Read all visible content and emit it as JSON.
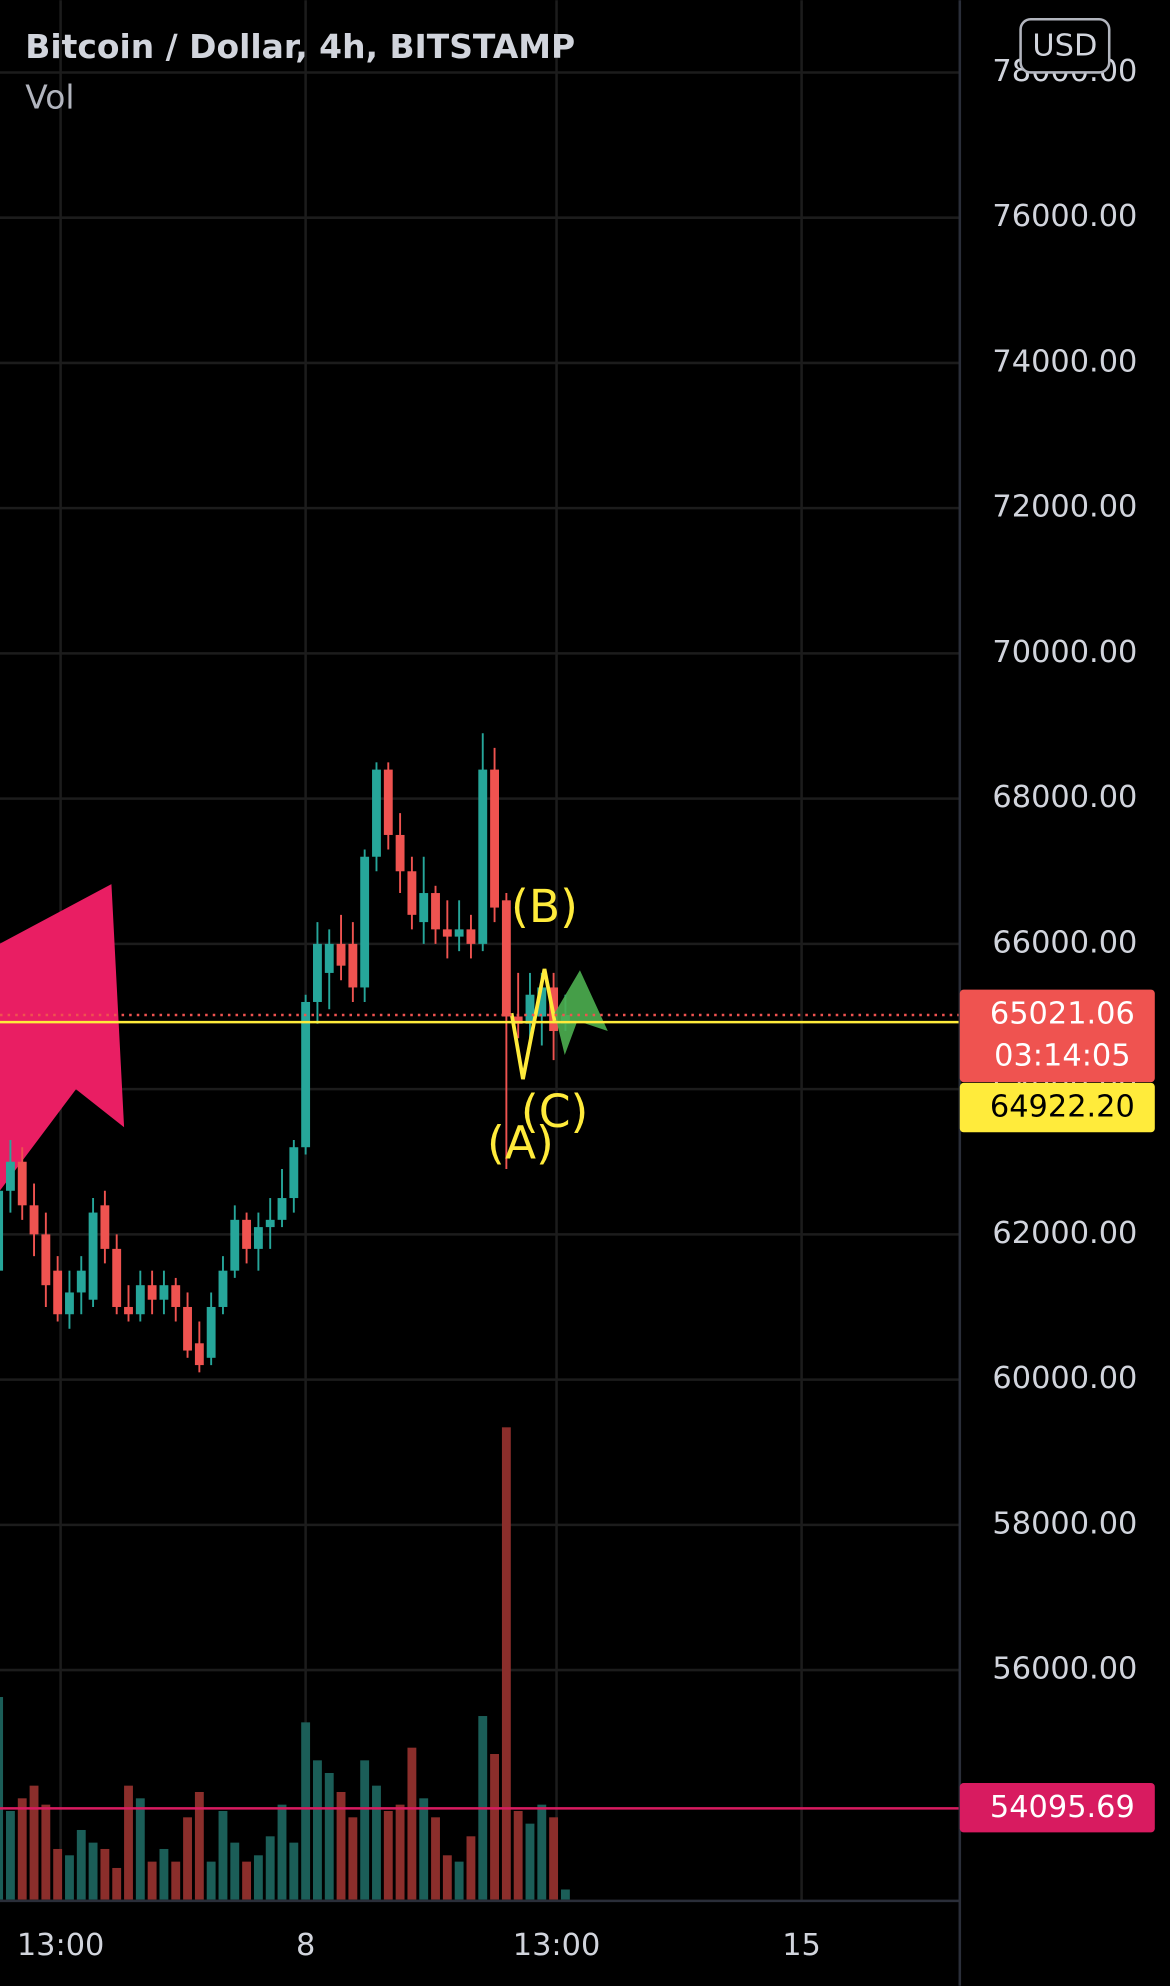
{
  "header": {
    "title": "Bitcoin / Dollar, 4h, BITSTAMP",
    "volume_label": "Vol",
    "currency": "USD"
  },
  "chart_data": {
    "type": "candlestick",
    "x": [
      88,
      92,
      96,
      100,
      104,
      108,
      112,
      116,
      120,
      124,
      128,
      132,
      136,
      140,
      144,
      148,
      152,
      156,
      160,
      164,
      168,
      172,
      176,
      180,
      184,
      188,
      192,
      196,
      200,
      204,
      208,
      212,
      216,
      220,
      224,
      228,
      232,
      236,
      240,
      244,
      248,
      252,
      256,
      260,
      264,
      268,
      272,
      276,
      280
    ],
    "open": [
      61500,
      62600,
      63000,
      62400,
      62000,
      61500,
      60900,
      61200,
      61100,
      62400,
      61800,
      61000,
      60900,
      61300,
      61100,
      61300,
      61000,
      60500,
      60300,
      61000,
      61500,
      62200,
      61800,
      62100,
      62200,
      62500,
      63200,
      65200,
      65600,
      66000,
      66000,
      65400,
      67200,
      68400,
      67500,
      67000,
      66300,
      66700,
      66200,
      66100,
      66200,
      66000,
      68400,
      66600,
      65000,
      64900,
      65000,
      65400,
      64900
    ],
    "high": [
      63000,
      63300,
      63200,
      62700,
      62300,
      61700,
      61500,
      61700,
      62500,
      62600,
      62000,
      61300,
      61500,
      61500,
      61500,
      61400,
      61200,
      60800,
      61200,
      61700,
      62400,
      62300,
      62300,
      62500,
      62900,
      63300,
      65300,
      66300,
      66200,
      66400,
      66300,
      67300,
      68500,
      68500,
      67800,
      67200,
      67200,
      66800,
      66600,
      66600,
      66400,
      68900,
      68700,
      66700,
      65600,
      65600,
      65600,
      65600,
      65300
    ],
    "low": [
      60000,
      62300,
      62200,
      61700,
      61000,
      60800,
      60700,
      60900,
      61000,
      61600,
      60900,
      60800,
      60800,
      60900,
      60900,
      60800,
      60300,
      60100,
      60200,
      60900,
      61400,
      61600,
      61500,
      61800,
      62100,
      62300,
      63100,
      64900,
      65100,
      65500,
      65200,
      65200,
      67000,
      67300,
      66700,
      66200,
      66000,
      66000,
      65800,
      65900,
      65800,
      65900,
      66300,
      62900,
      64700,
      64600,
      64600,
      64400,
      64800
    ],
    "close": [
      62600,
      63000,
      62400,
      62000,
      61300,
      60900,
      61200,
      61500,
      62300,
      61800,
      61000,
      60900,
      61300,
      61100,
      61300,
      61000,
      60400,
      60200,
      61000,
      61500,
      62200,
      61800,
      62100,
      62200,
      62500,
      63200,
      65200,
      66000,
      66000,
      65700,
      65400,
      67200,
      68400,
      67500,
      67000,
      66400,
      66700,
      66200,
      66100,
      66200,
      66000,
      68400,
      66500,
      65000,
      64900,
      65300,
      65400,
      64800,
      65021.06
    ],
    "volume": [
      160,
      70,
      80,
      90,
      75,
      40,
      35,
      55,
      45,
      40,
      25,
      90,
      80,
      30,
      40,
      30,
      65,
      85,
      30,
      70,
      45,
      30,
      35,
      50,
      75,
      45,
      140,
      110,
      100,
      85,
      65,
      110,
      90,
      70,
      75,
      120,
      80,
      65,
      35,
      30,
      50,
      145,
      115,
      373,
      70,
      60,
      75,
      65,
      8
    ],
    "up_color": "#26a69a",
    "down_color": "#ef5350",
    "up_volume_color": "#1b5e58",
    "down_volume_color": "#8b2e2b",
    "xlim": [
      88.47,
      413.6
    ],
    "xticks": [
      {
        "value": 109,
        "label": "13:00"
      },
      {
        "value": 192,
        "label": "8"
      },
      {
        "value": 277,
        "label": "13:00"
      },
      {
        "value": 360,
        "label": "15"
      }
    ],
    "ylim": [
      52839,
      78994
    ],
    "yticks": [
      {
        "value": 56000,
        "label": "56000.00"
      },
      {
        "value": 58000,
        "label": "58000.00"
      },
      {
        "value": 60000,
        "label": "60000.00"
      },
      {
        "value": 62000,
        "label": "62000.00"
      },
      {
        "value": 64000,
        "label": "64000.00"
      },
      {
        "value": 66000,
        "label": "66000.00"
      },
      {
        "value": 68000,
        "label": "68000.00"
      },
      {
        "value": 70000,
        "label": "70000.00"
      },
      {
        "value": 72000,
        "label": "72000.00"
      },
      {
        "value": 74000,
        "label": "74000.00"
      },
      {
        "value": 76000,
        "label": "76000.00"
      },
      {
        "value": 78000,
        "label": "78000.00"
      }
    ],
    "volume_lim": [
      0,
      400
    ],
    "grid": true,
    "price_lines": [
      {
        "value": 65021.06,
        "label": "65021.06",
        "countdown": "03:14:05",
        "color": "#ef5350",
        "text_color": "#ffffff",
        "style": "dotted"
      },
      {
        "value": 64922.2,
        "label": "64922.20",
        "color": "#ffeb3b",
        "text_color": "#000000",
        "style": "solid"
      },
      {
        "value": 54095.69,
        "label": "54095.69",
        "color": "#d81b60",
        "text_color": "#ffffff",
        "style": "solid"
      }
    ],
    "annotations": [
      "(A)",
      "(B)",
      "(C)"
    ],
    "annotation_color": "#ffeb3b"
  }
}
